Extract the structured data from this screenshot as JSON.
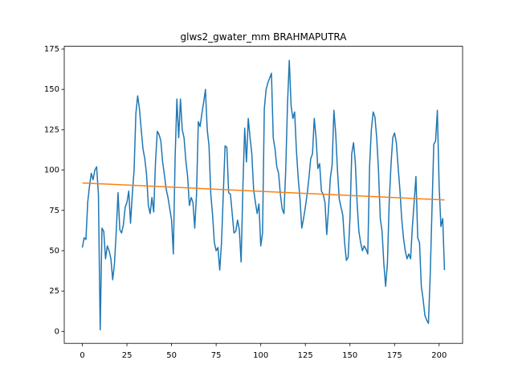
{
  "chart_data": {
    "type": "line",
    "title": "glws2_gwater_mm BRAHMAPUTRA",
    "x": [
      0,
      1,
      2,
      3,
      4,
      5,
      6,
      7,
      8,
      9,
      10,
      11,
      12,
      13,
      14,
      15,
      16,
      17,
      18,
      19,
      20,
      21,
      22,
      23,
      24,
      25,
      26,
      27,
      28,
      29,
      30,
      31,
      32,
      33,
      34,
      35,
      36,
      37,
      38,
      39,
      40,
      41,
      42,
      43,
      44,
      45,
      46,
      47,
      48,
      49,
      50,
      51,
      52,
      53,
      54,
      55,
      56,
      57,
      58,
      59,
      60,
      61,
      62,
      63,
      64,
      65,
      66,
      67,
      68,
      69,
      70,
      71,
      72,
      73,
      74,
      75,
      76,
      77,
      78,
      79,
      80,
      81,
      82,
      83,
      84,
      85,
      86,
      87,
      88,
      89,
      90,
      91,
      92,
      93,
      94,
      95,
      96,
      97,
      98,
      99,
      100,
      101,
      102,
      103,
      104,
      105,
      106,
      107,
      108,
      109,
      110,
      111,
      112,
      113,
      114,
      115,
      116,
      117,
      118,
      119,
      120,
      121,
      122,
      123,
      124,
      125,
      126,
      127,
      128,
      129,
      130,
      131,
      132,
      133,
      134,
      135,
      136,
      137,
      138,
      139,
      140,
      141,
      142,
      143,
      144,
      145,
      146,
      147,
      148,
      149,
      150,
      151,
      152,
      153,
      154,
      155,
      156,
      157,
      158,
      159,
      160,
      161,
      162,
      163,
      164,
      165,
      166,
      167,
      168,
      169,
      170,
      171,
      172,
      173,
      174,
      175,
      176,
      177,
      178,
      179,
      180,
      181,
      182,
      183,
      184,
      185,
      186,
      187,
      188,
      189,
      190,
      191,
      192,
      193,
      194,
      195,
      196,
      197,
      198,
      199,
      200,
      201,
      202,
      203
    ],
    "series": [
      {
        "color": "#1f77b4",
        "values": [
          52,
          58,
          57,
          80,
          90,
          98,
          94,
          100,
          102,
          85,
          1,
          64,
          62,
          45,
          53,
          50,
          45,
          32,
          42,
          62,
          86,
          63,
          61,
          66,
          77,
          80,
          87,
          67,
          85,
          100,
          135,
          146,
          138,
          125,
          113,
          107,
          97,
          78,
          73,
          83,
          74,
          105,
          124,
          122,
          118,
          105,
          97,
          88,
          83,
          76,
          69,
          48,
          108,
          144,
          120,
          144,
          125,
          120,
          106,
          96,
          78,
          83,
          80,
          64,
          85,
          130,
          127,
          135,
          142,
          150,
          125,
          115,
          85,
          72,
          55,
          50,
          52,
          38,
          55,
          85,
          115,
          114,
          86,
          85,
          73,
          61,
          62,
          69,
          63,
          43,
          90,
          126,
          105,
          132,
          120,
          110,
          88,
          80,
          73,
          79,
          53,
          61,
          138,
          150,
          154,
          157,
          160,
          120,
          113,
          102,
          98,
          85,
          76,
          73,
          100,
          141,
          168,
          140,
          132,
          136,
          112,
          95,
          82,
          64,
          70,
          77,
          85,
          95,
          107,
          110,
          132,
          120,
          101,
          104,
          87,
          85,
          80,
          60,
          76,
          95,
          103,
          137,
          123,
          100,
          82,
          77,
          72,
          55,
          44,
          46,
          70,
          110,
          117,
          105,
          80,
          62,
          55,
          50,
          53,
          51,
          48,
          102,
          125,
          136,
          133,
          120,
          100,
          70,
          62,
          42,
          28,
          42,
          80,
          103,
          120,
          123,
          117,
          102,
          88,
          70,
          58,
          50,
          45,
          48,
          45,
          65,
          80,
          96,
          58,
          55,
          28,
          20,
          10,
          7,
          5,
          35,
          76,
          116,
          118,
          137,
          90,
          65,
          70,
          38
        ]
      },
      {
        "color": "#ff7f0e",
        "x": [
          0,
          203
        ],
        "values": [
          92,
          81.5
        ]
      }
    ],
    "xlim": [
      -10.15,
      213.15
    ],
    "ylim": [
      -7.4,
      176.7
    ],
    "xticks": [
      0,
      25,
      50,
      75,
      100,
      125,
      150,
      175,
      200
    ],
    "yticks": [
      0,
      25,
      50,
      75,
      100,
      125,
      150,
      175
    ]
  }
}
